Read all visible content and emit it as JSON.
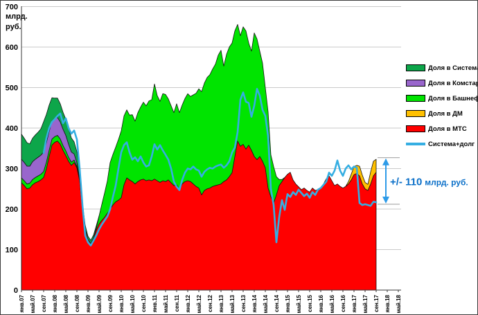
{
  "y_axis": {
    "unit_lines": [
      "млрд.",
      "руб."
    ],
    "ticks": [
      0,
      100,
      200,
      300,
      400,
      500,
      600,
      700
    ],
    "min": 0,
    "max": 700,
    "grid_color": "#c9c9c9",
    "axis_color": "#3a3a3a"
  },
  "x_axis": {
    "tick_labels": [
      "янв.07",
      "май.07",
      "сен.07",
      "янв.08",
      "май.08",
      "сен.08",
      "янв.09",
      "май.09",
      "сен.09",
      "янв.10",
      "май.10",
      "сен.10",
      "янв.11",
      "май.11",
      "сен.11",
      "янв.12",
      "май.12",
      "сен.12",
      "янв.13",
      "май.13",
      "сен.13",
      "янв.14",
      "май.14",
      "сен.14",
      "янв.15",
      "май.15",
      "сен.15",
      "янв.16",
      "май.16",
      "сен.16",
      "янв.17",
      "май.17",
      "сен.17",
      "янв.18",
      "май.18"
    ],
    "months_per_tick": 4
  },
  "legend": {
    "items": [
      {
        "label": "Доля в Система-Галс",
        "color": "#0da64a",
        "type": "area"
      },
      {
        "label": "Доля в Комстар",
        "color": "#9966cc",
        "type": "area"
      },
      {
        "label": "Доля в Башнефти",
        "color": "#00e400",
        "type": "area"
      },
      {
        "label": "Доля в ДМ",
        "color": "#ffc000",
        "type": "area"
      },
      {
        "label": "Доля в МТС",
        "color": "#ff0000",
        "type": "area"
      },
      {
        "label": "Система+долг",
        "color": "#35aee2",
        "type": "line"
      }
    ]
  },
  "annotation": {
    "value_text": "+/- 110",
    "unit_text": "млрд. руб.",
    "text_color": "#0a6fc8",
    "arrow_color": "#2d9be8",
    "cap_color": "#999999",
    "y_top_value": 327,
    "y_bottom_value": 212
  },
  "chart_data": {
    "type": "area",
    "stacked": true,
    "x_unit": "months since Jan 2007 (0 = янв.07, data ends сен.17 = 128)",
    "ylim": [
      0,
      700
    ],
    "grid": "horizontal",
    "legend_position": "right",
    "outline_color": "#141414",
    "series": [
      {
        "name": "Доля в МТС",
        "color": "#ff0000",
        "values": [
          265,
          258,
          250,
          252,
          260,
          265,
          268,
          272,
          278,
          300,
          330,
          358,
          365,
          368,
          360,
          345,
          332,
          318,
          308,
          315,
          302,
          270,
          200,
          150,
          125,
          115,
          128,
          148,
          163,
          172,
          180,
          190,
          200,
          210,
          218,
          222,
          228,
          260,
          277,
          272,
          268,
          262,
          268,
          272,
          274,
          270,
          272,
          270,
          274,
          270,
          266,
          270,
          268,
          272,
          265,
          258,
          260,
          248,
          262,
          268,
          270,
          268,
          262,
          256,
          252,
          235,
          246,
          250,
          252,
          256,
          258,
          260,
          262,
          268,
          272,
          280,
          290,
          330,
          368,
          355,
          360,
          348,
          358,
          345,
          330,
          322,
          330,
          318,
          302,
          252,
          230,
          215,
          235,
          258,
          268,
          278,
          286,
          291,
          272,
          262,
          255,
          248,
          252,
          246,
          242,
          252,
          246,
          248,
          250,
          262,
          275,
          282,
          270,
          258,
          262,
          256,
          252,
          256,
          262,
          272,
          285,
          288,
          282,
          262,
          250,
          246,
          262,
          282,
          291
        ]
      },
      {
        "name": "Доля в ДМ",
        "color": "#ffc000",
        "values": [
          0,
          0,
          0,
          0,
          0,
          0,
          0,
          0,
          0,
          0,
          0,
          0,
          0,
          0,
          0,
          0,
          0,
          0,
          0,
          0,
          0,
          0,
          0,
          0,
          0,
          0,
          0,
          0,
          0,
          0,
          0,
          0,
          0,
          0,
          0,
          0,
          0,
          0,
          0,
          0,
          0,
          0,
          0,
          0,
          0,
          0,
          0,
          0,
          0,
          0,
          0,
          0,
          0,
          0,
          0,
          0,
          0,
          0,
          0,
          0,
          0,
          0,
          0,
          0,
          0,
          0,
          0,
          0,
          0,
          0,
          0,
          0,
          0,
          0,
          0,
          0,
          0,
          0,
          0,
          0,
          0,
          0,
          0,
          0,
          0,
          0,
          0,
          0,
          0,
          0,
          0,
          0,
          0,
          0,
          0,
          0,
          0,
          0,
          0,
          0,
          0,
          0,
          0,
          0,
          0,
          0,
          0,
          0,
          0,
          0,
          0,
          0,
          0,
          0,
          0,
          0,
          0,
          0,
          6,
          14,
          20,
          20,
          24,
          22,
          16,
          15,
          30,
          36,
          32
        ]
      },
      {
        "name": "Доля в Башнефти",
        "color": "#00e400",
        "values": [
          12,
          12,
          12,
          12,
          13,
          13,
          14,
          14,
          15,
          16,
          16,
          15,
          14,
          14,
          13,
          12,
          12,
          10,
          8,
          6,
          4,
          2,
          0,
          0,
          0,
          0,
          0,
          5,
          20,
          40,
          60,
          80,
          115,
          125,
          135,
          150,
          165,
          170,
          168,
          160,
          165,
          155,
          170,
          180,
          190,
          185,
          195,
          200,
          235,
          210,
          200,
          215,
          215,
          200,
          190,
          180,
          200,
          190,
          195,
          205,
          215,
          210,
          220,
          230,
          245,
          255,
          265,
          275,
          280,
          290,
          300,
          320,
          330,
          285,
          310,
          320,
          320,
          310,
          288,
          273,
          290,
          292,
          252,
          245,
          305,
          298,
          260,
          242,
          198,
          188,
          104,
          90,
          45,
          15,
          5,
          0,
          0,
          0,
          0,
          0,
          0,
          0,
          0,
          0,
          0,
          0,
          0,
          0,
          0,
          0,
          0,
          0,
          0,
          0,
          0,
          0,
          0,
          0,
          0,
          0,
          0,
          0,
          0,
          0,
          0,
          0,
          0,
          0,
          0
        ]
      },
      {
        "name": "Доля в Комстар",
        "color": "#9966cc",
        "values": [
          46,
          45,
          44,
          42,
          44,
          45,
          46,
          47,
          48,
          48,
          46,
          44,
          45,
          44,
          42,
          40,
          38,
          32,
          25,
          15,
          8,
          3,
          0,
          0,
          0,
          0,
          0,
          0,
          0,
          0,
          0,
          0,
          0,
          0,
          0,
          0,
          0,
          0,
          0,
          0,
          0,
          0,
          0,
          0,
          0,
          0,
          0,
          0,
          0,
          0,
          0,
          0,
          0,
          0,
          0,
          0,
          0,
          0,
          0,
          0,
          0,
          0,
          0,
          0,
          0,
          0,
          0,
          0,
          0,
          0,
          0,
          0,
          0,
          0,
          0,
          0,
          0,
          0,
          0,
          0,
          0,
          0,
          0,
          0,
          0,
          0,
          0,
          0,
          0,
          0,
          0,
          0,
          0,
          0,
          0,
          0,
          0,
          0,
          0,
          0,
          0,
          0,
          0,
          0,
          0,
          0,
          0,
          0,
          0,
          0,
          0,
          0,
          0,
          0,
          0,
          0,
          0,
          0,
          0,
          0,
          0,
          0,
          0,
          0,
          0,
          0,
          0,
          0,
          0
        ]
      },
      {
        "name": "Доля в Система-Галс",
        "color": "#0da64a",
        "values": [
          62,
          60,
          58,
          55,
          58,
          60,
          62,
          65,
          75,
          70,
          65,
          58,
          50,
          48,
          45,
          42,
          40,
          38,
          35,
          30,
          28,
          22,
          15,
          10,
          8,
          8,
          8,
          6,
          0,
          0,
          0,
          0,
          0,
          0,
          0,
          0,
          0,
          0,
          0,
          0,
          0,
          0,
          0,
          0,
          0,
          0,
          0,
          0,
          0,
          0,
          0,
          0,
          0,
          0,
          0,
          0,
          0,
          0,
          0,
          0,
          0,
          0,
          0,
          0,
          0,
          0,
          0,
          0,
          0,
          0,
          0,
          0,
          0,
          0,
          0,
          0,
          0,
          0,
          0,
          0,
          0,
          0,
          0,
          0,
          0,
          0,
          0,
          0,
          0,
          0,
          0,
          0,
          0,
          0,
          0,
          0,
          0,
          0,
          0,
          0,
          0,
          0,
          0,
          0,
          0,
          0,
          0,
          0,
          0,
          0,
          0,
          0,
          0,
          0,
          0,
          0,
          0,
          0,
          0,
          0,
          0,
          0,
          0,
          0,
          0,
          0,
          0,
          0,
          0
        ]
      }
    ],
    "line_series": {
      "name": "Система+долг",
      "color": "#35aee2",
      "values": [
        null,
        null,
        null,
        null,
        null,
        null,
        null,
        null,
        338,
        375,
        400,
        415,
        422,
        430,
        436,
        412,
        424,
        400,
        386,
        394,
        372,
        300,
        210,
        135,
        118,
        110,
        122,
        135,
        150,
        162,
        172,
        182,
        200,
        230,
        258,
        300,
        340,
        358,
        365,
        340,
        322,
        328,
        318,
        330,
        315,
        305,
        308,
        330,
        360,
        347,
        358,
        345,
        334,
        322,
        300,
        268,
        255,
        247,
        272,
        290,
        300,
        298,
        305,
        298,
        295,
        280,
        292,
        298,
        302,
        300,
        305,
        308,
        310,
        302,
        308,
        318,
        340,
        352,
        390,
        470,
        488,
        465,
        462,
        428,
        455,
        497,
        480,
        445,
        430,
        380,
        250,
        210,
        118,
        180,
        222,
        198,
        237,
        230,
        242,
        235,
        248,
        240,
        232,
        238,
        228,
        242,
        235,
        248,
        252,
        260,
        268,
        290,
        282,
        295,
        320,
        295,
        282,
        300,
        308,
        298,
        305,
        302,
        215,
        210,
        212,
        210,
        208,
        218,
        217
      ]
    }
  }
}
